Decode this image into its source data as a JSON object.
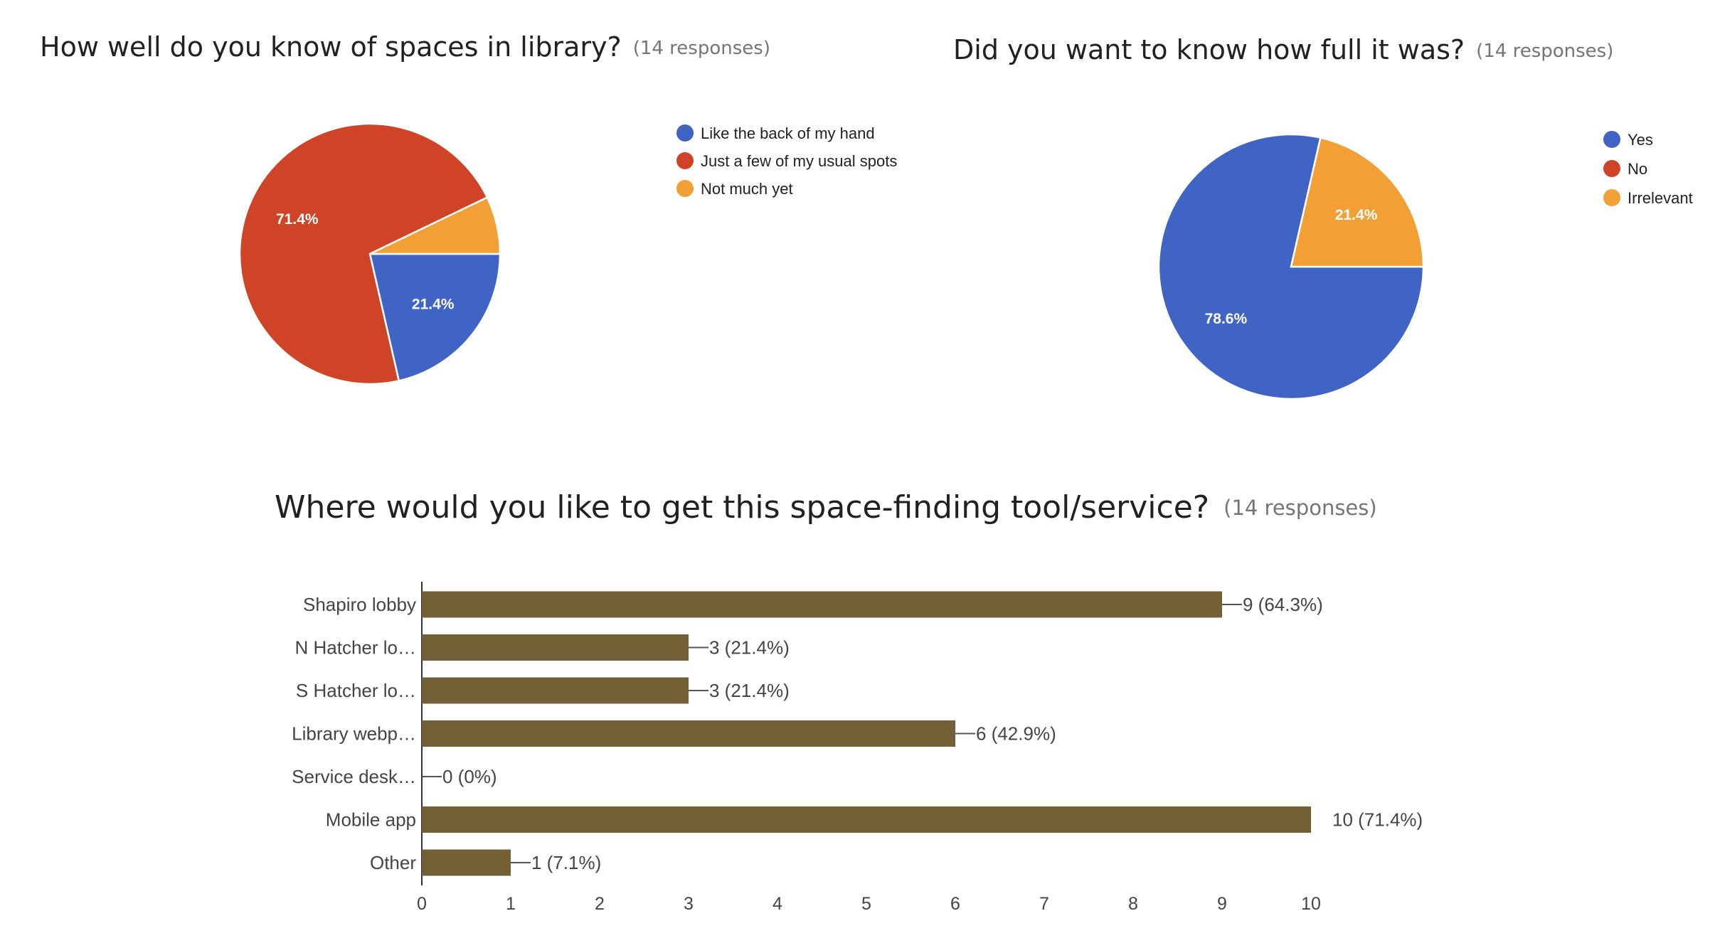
{
  "chart_data": [
    {
      "type": "pie",
      "title": "How well do you know of spaces in library?",
      "subtitle": "(14 responses)",
      "categories": [
        "Like the back of my hand",
        "Just a few of my usual spots",
        "Not much yet"
      ],
      "values": [
        3,
        10,
        1
      ],
      "labels": [
        "21.4%",
        "71.4%",
        ""
      ],
      "colors": [
        "#3f64c4",
        "#cf4427",
        "#f2a035"
      ],
      "legend_position": "right"
    },
    {
      "type": "pie",
      "title": "Did you want to know how full it was?",
      "subtitle": "(14 responses)",
      "categories": [
        "Yes",
        "No",
        "Irrelevant"
      ],
      "values": [
        11,
        0,
        3
      ],
      "labels": [
        "78.6%",
        "",
        "21.4%"
      ],
      "colors": [
        "#3f64c4",
        "#cf4427",
        "#f2a035"
      ],
      "legend_position": "right"
    },
    {
      "type": "bar",
      "orientation": "horizontal",
      "title": "Where would you like to get this space-finding tool/service?",
      "subtitle": "(14 responses)",
      "categories": [
        "Shapiro lobby",
        "N Hatcher lo…",
        "S Hatcher lo…",
        "Library webp…",
        "Service desk…",
        "Mobile app",
        "Other"
      ],
      "values": [
        9,
        3,
        3,
        6,
        0,
        10,
        1
      ],
      "value_labels": [
        "9 (64.3%)",
        "3 (21.4%)",
        "3 (21.4%)",
        "6 (42.9%)",
        "0 (0%)",
        "10 (71.4%)",
        "1 (7.1%)"
      ],
      "xticks": [
        "0",
        "1",
        "2",
        "3",
        "4",
        "5",
        "6",
        "7",
        "8",
        "9",
        "10"
      ],
      "xlim": [
        0,
        10
      ],
      "color": "#736037",
      "grid": false
    }
  ]
}
